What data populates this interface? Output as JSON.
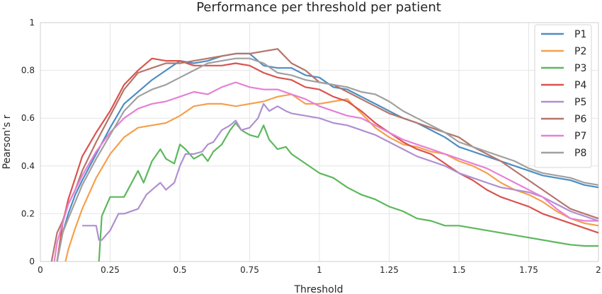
{
  "chart_data": {
    "type": "line",
    "title": "Performance per threshold per patient",
    "xlabel": "Threshold",
    "ylabel": "Pearson's r",
    "xlim": [
      0,
      2
    ],
    "ylim": [
      0,
      1
    ],
    "xticks": [
      0,
      0.25,
      0.5,
      0.75,
      1,
      1.25,
      1.5,
      1.75,
      2
    ],
    "xtick_labels": [
      "0",
      "0.25",
      "0.5",
      "0.75",
      "1",
      "1.25",
      "1.5",
      "1.75",
      "2"
    ],
    "yticks": [
      0,
      0.2,
      0.4,
      0.6,
      0.8,
      1
    ],
    "ytick_labels": [
      "0",
      "0.2",
      "0.4",
      "0.6",
      "0.8",
      "1"
    ],
    "grid": true,
    "legend_position": "top-right",
    "series": [
      {
        "name": "P1",
        "color": "#4c8ec3",
        "x": [
          0.06,
          0.08,
          0.1,
          0.125,
          0.15,
          0.2,
          0.25,
          0.3,
          0.35,
          0.4,
          0.45,
          0.5,
          0.55,
          0.6,
          0.65,
          0.7,
          0.75,
          0.8,
          0.85,
          0.9,
          0.95,
          1.0,
          1.05,
          1.1,
          1.15,
          1.2,
          1.25,
          1.3,
          1.35,
          1.4,
          1.45,
          1.5,
          1.55,
          1.6,
          1.65,
          1.7,
          1.75,
          1.8,
          1.85,
          1.9,
          1.95,
          2.0
        ],
        "y": [
          0.0,
          0.12,
          0.2,
          0.28,
          0.34,
          0.45,
          0.56,
          0.66,
          0.71,
          0.76,
          0.8,
          0.84,
          0.83,
          0.84,
          0.86,
          0.87,
          0.87,
          0.82,
          0.81,
          0.81,
          0.78,
          0.77,
          0.73,
          0.72,
          0.69,
          0.66,
          0.63,
          0.6,
          0.58,
          0.55,
          0.52,
          0.48,
          0.46,
          0.44,
          0.42,
          0.4,
          0.38,
          0.36,
          0.35,
          0.34,
          0.32,
          0.31
        ]
      },
      {
        "name": "P2",
        "color": "#f5a04c",
        "x": [
          0.09,
          0.1,
          0.125,
          0.15,
          0.2,
          0.25,
          0.3,
          0.35,
          0.4,
          0.45,
          0.5,
          0.55,
          0.6,
          0.65,
          0.7,
          0.75,
          0.8,
          0.85,
          0.9,
          0.95,
          1.0,
          1.05,
          1.1,
          1.15,
          1.2,
          1.25,
          1.3,
          1.35,
          1.4,
          1.45,
          1.5,
          1.55,
          1.6,
          1.65,
          1.7,
          1.75,
          1.8,
          1.85,
          1.9,
          1.95,
          2.0
        ],
        "y": [
          0.0,
          0.05,
          0.14,
          0.22,
          0.35,
          0.45,
          0.52,
          0.56,
          0.57,
          0.58,
          0.61,
          0.65,
          0.66,
          0.66,
          0.65,
          0.66,
          0.67,
          0.69,
          0.7,
          0.66,
          0.66,
          0.67,
          0.68,
          0.62,
          0.56,
          0.52,
          0.49,
          0.48,
          0.46,
          0.45,
          0.42,
          0.4,
          0.37,
          0.33,
          0.3,
          0.28,
          0.25,
          0.21,
          0.18,
          0.16,
          0.15
        ]
      },
      {
        "name": "P3",
        "color": "#5cb85c",
        "x": [
          0.21,
          0.22,
          0.25,
          0.28,
          0.3,
          0.35,
          0.37,
          0.4,
          0.43,
          0.45,
          0.48,
          0.5,
          0.52,
          0.55,
          0.58,
          0.6,
          0.62,
          0.65,
          0.68,
          0.7,
          0.72,
          0.75,
          0.78,
          0.8,
          0.82,
          0.85,
          0.88,
          0.9,
          0.95,
          1.0,
          1.05,
          1.1,
          1.15,
          1.2,
          1.25,
          1.3,
          1.35,
          1.4,
          1.45,
          1.5,
          1.55,
          1.6,
          1.65,
          1.7,
          1.75,
          1.8,
          1.85,
          1.9,
          1.95,
          2.0
        ],
        "y": [
          0.0,
          0.19,
          0.27,
          0.27,
          0.27,
          0.38,
          0.33,
          0.42,
          0.47,
          0.43,
          0.41,
          0.49,
          0.47,
          0.43,
          0.45,
          0.42,
          0.46,
          0.49,
          0.55,
          0.58,
          0.55,
          0.53,
          0.52,
          0.57,
          0.51,
          0.47,
          0.48,
          0.45,
          0.41,
          0.37,
          0.35,
          0.31,
          0.28,
          0.26,
          0.23,
          0.21,
          0.18,
          0.17,
          0.15,
          0.15,
          0.14,
          0.13,
          0.12,
          0.11,
          0.1,
          0.09,
          0.08,
          0.07,
          0.065,
          0.065
        ]
      },
      {
        "name": "P4",
        "color": "#d9534f",
        "x": [
          0.06,
          0.08,
          0.1,
          0.125,
          0.15,
          0.2,
          0.25,
          0.3,
          0.35,
          0.4,
          0.45,
          0.5,
          0.55,
          0.6,
          0.65,
          0.7,
          0.75,
          0.8,
          0.85,
          0.9,
          0.95,
          1.0,
          1.05,
          1.1,
          1.15,
          1.2,
          1.25,
          1.3,
          1.35,
          1.4,
          1.45,
          1.5,
          1.55,
          1.6,
          1.65,
          1.7,
          1.75,
          1.8,
          1.85,
          1.9,
          1.95,
          2.0
        ],
        "y": [
          0.0,
          0.16,
          0.26,
          0.35,
          0.44,
          0.54,
          0.63,
          0.74,
          0.8,
          0.85,
          0.84,
          0.84,
          0.82,
          0.82,
          0.82,
          0.83,
          0.82,
          0.79,
          0.77,
          0.76,
          0.73,
          0.72,
          0.69,
          0.67,
          0.63,
          0.58,
          0.54,
          0.5,
          0.47,
          0.45,
          0.41,
          0.37,
          0.34,
          0.3,
          0.27,
          0.25,
          0.23,
          0.2,
          0.18,
          0.16,
          0.14,
          0.12
        ]
      },
      {
        "name": "P5",
        "color": "#b08fd1",
        "x": [
          0.15,
          0.2,
          0.21,
          0.22,
          0.25,
          0.28,
          0.3,
          0.35,
          0.38,
          0.4,
          0.43,
          0.45,
          0.48,
          0.5,
          0.52,
          0.55,
          0.58,
          0.6,
          0.62,
          0.65,
          0.68,
          0.7,
          0.72,
          0.75,
          0.78,
          0.8,
          0.82,
          0.85,
          0.88,
          0.9,
          0.95,
          1.0,
          1.05,
          1.1,
          1.15,
          1.2,
          1.25,
          1.3,
          1.35,
          1.4,
          1.45,
          1.5,
          1.55,
          1.6,
          1.65,
          1.7,
          1.75,
          1.8,
          1.85,
          1.9,
          1.95,
          2.0
        ],
        "y": [
          0.15,
          0.15,
          0.09,
          0.09,
          0.13,
          0.2,
          0.2,
          0.22,
          0.28,
          0.3,
          0.33,
          0.3,
          0.33,
          0.4,
          0.45,
          0.45,
          0.46,
          0.49,
          0.5,
          0.55,
          0.57,
          0.59,
          0.55,
          0.56,
          0.6,
          0.66,
          0.63,
          0.65,
          0.63,
          0.62,
          0.61,
          0.6,
          0.58,
          0.57,
          0.55,
          0.53,
          0.5,
          0.47,
          0.44,
          0.42,
          0.4,
          0.37,
          0.35,
          0.33,
          0.31,
          0.3,
          0.29,
          0.27,
          0.24,
          0.21,
          0.19,
          0.17
        ]
      },
      {
        "name": "P6",
        "color": "#b5756b",
        "x": [
          0.04,
          0.06,
          0.08,
          0.1,
          0.125,
          0.15,
          0.2,
          0.25,
          0.3,
          0.35,
          0.4,
          0.45,
          0.5,
          0.55,
          0.6,
          0.65,
          0.7,
          0.75,
          0.8,
          0.85,
          0.9,
          0.95,
          1.0,
          1.05,
          1.1,
          1.15,
          1.2,
          1.25,
          1.3,
          1.35,
          1.4,
          1.45,
          1.5,
          1.55,
          1.6,
          1.65,
          1.7,
          1.75,
          1.8,
          1.85,
          1.9,
          1.95,
          2.0
        ],
        "y": [
          0.0,
          0.12,
          0.17,
          0.24,
          0.3,
          0.38,
          0.5,
          0.61,
          0.72,
          0.79,
          0.81,
          0.83,
          0.83,
          0.84,
          0.85,
          0.86,
          0.87,
          0.87,
          0.88,
          0.89,
          0.83,
          0.8,
          0.75,
          0.74,
          0.71,
          0.68,
          0.65,
          0.62,
          0.6,
          0.58,
          0.56,
          0.54,
          0.52,
          0.48,
          0.45,
          0.42,
          0.38,
          0.34,
          0.3,
          0.26,
          0.22,
          0.2,
          0.18
        ]
      },
      {
        "name": "P7",
        "color": "#e680d6",
        "x": [
          0.05,
          0.06,
          0.08,
          0.1,
          0.125,
          0.15,
          0.2,
          0.25,
          0.3,
          0.35,
          0.4,
          0.45,
          0.5,
          0.55,
          0.6,
          0.65,
          0.7,
          0.75,
          0.8,
          0.85,
          0.9,
          0.95,
          1.0,
          1.05,
          1.1,
          1.15,
          1.2,
          1.25,
          1.3,
          1.35,
          1.4,
          1.45,
          1.5,
          1.55,
          1.6,
          1.65,
          1.7,
          1.75,
          1.8,
          1.85,
          1.9,
          1.95,
          2.0
        ],
        "y": [
          0.0,
          0.08,
          0.16,
          0.24,
          0.3,
          0.36,
          0.46,
          0.54,
          0.6,
          0.64,
          0.66,
          0.67,
          0.69,
          0.71,
          0.7,
          0.73,
          0.75,
          0.73,
          0.72,
          0.72,
          0.7,
          0.68,
          0.65,
          0.63,
          0.61,
          0.6,
          0.57,
          0.54,
          0.51,
          0.49,
          0.47,
          0.45,
          0.43,
          0.41,
          0.39,
          0.36,
          0.33,
          0.3,
          0.27,
          0.22,
          0.18,
          0.17,
          0.17
        ]
      },
      {
        "name": "P8",
        "color": "#a0a0a0",
        "x": [
          0.06,
          0.08,
          0.1,
          0.125,
          0.15,
          0.2,
          0.25,
          0.3,
          0.35,
          0.4,
          0.45,
          0.5,
          0.55,
          0.6,
          0.65,
          0.7,
          0.75,
          0.8,
          0.85,
          0.9,
          0.95,
          1.0,
          1.05,
          1.1,
          1.15,
          1.2,
          1.25,
          1.3,
          1.35,
          1.4,
          1.45,
          1.5,
          1.55,
          1.6,
          1.65,
          1.7,
          1.75,
          1.8,
          1.85,
          1.9,
          1.95,
          2.0
        ],
        "y": [
          0.0,
          0.12,
          0.18,
          0.25,
          0.32,
          0.43,
          0.53,
          0.63,
          0.69,
          0.72,
          0.74,
          0.77,
          0.8,
          0.83,
          0.84,
          0.85,
          0.85,
          0.83,
          0.79,
          0.78,
          0.76,
          0.75,
          0.74,
          0.73,
          0.71,
          0.7,
          0.67,
          0.63,
          0.6,
          0.57,
          0.54,
          0.5,
          0.48,
          0.46,
          0.44,
          0.42,
          0.39,
          0.37,
          0.36,
          0.35,
          0.33,
          0.32
        ]
      }
    ]
  }
}
